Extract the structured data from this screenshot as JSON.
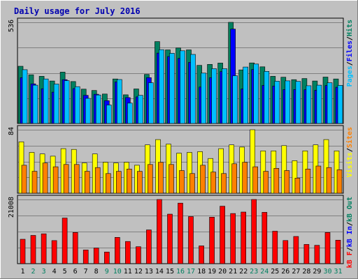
{
  "title": "Daily usage for July 2016",
  "colors": {
    "background": "#c0c0c0",
    "title": "#0000b0",
    "pages": "#00c0ff",
    "files": "#0000ff",
    "hits": "#008060",
    "visits": "#ffff00",
    "sites": "#ff8000",
    "kb_in": "#0000ff",
    "kb_out": "#008060",
    "kb_f": "#ff0000",
    "weekday_label": "#000000",
    "weekend_label": "#008060"
  },
  "chart_data": [
    {
      "type": "bar",
      "title": "Daily usage for July 2016",
      "categories": [
        "1",
        "2",
        "3",
        "4",
        "5",
        "6",
        "7",
        "8",
        "9",
        "10",
        "11",
        "12",
        "13",
        "14",
        "15",
        "16",
        "17",
        "18",
        "19",
        "20",
        "21",
        "22",
        "23",
        "24",
        "25",
        "26",
        "27",
        "28",
        "29",
        "30",
        "31"
      ],
      "weekend_days": [
        "2",
        "3",
        "9",
        "10",
        "16",
        "17",
        "23",
        "24",
        "30",
        "31"
      ],
      "y_max_label": "536",
      "ylim": [
        0,
        536
      ],
      "right_labels": [
        "Pages",
        "/",
        "Files",
        "/",
        "Hits"
      ],
      "series": [
        {
          "name": "Hits",
          "values": [
            303,
            258,
            250,
            225,
            272,
            222,
            182,
            175,
            156,
            236,
            152,
            183,
            260,
            434,
            390,
            400,
            390,
            308,
            313,
            320,
            536,
            284,
            321,
            300,
            250,
            245,
            232,
            238,
            225,
            246,
            236
          ]
        },
        {
          "name": "Files",
          "values": [
            243,
            210,
            184,
            166,
            232,
            185,
            149,
            155,
            121,
            220,
            137,
            141,
            243,
            373,
            355,
            345,
            324,
            193,
            243,
            275,
            500,
            183,
            286,
            202,
            198,
            180,
            180,
            179,
            176,
            201,
            192
          ]
        },
        {
          "name": "Pages",
          "values": [
            285,
            203,
            236,
            209,
            227,
            195,
            133,
            151,
            98,
            233,
            108,
            149,
            216,
            391,
            372,
            385,
            366,
            267,
            290,
            290,
            253,
            299,
            315,
            276,
            224,
            226,
            223,
            200,
            203,
            216,
            202
          ]
        }
      ]
    },
    {
      "type": "bar",
      "categories": [
        "1",
        "2",
        "3",
        "4",
        "5",
        "6",
        "7",
        "8",
        "9",
        "10",
        "11",
        "12",
        "13",
        "14",
        "15",
        "16",
        "17",
        "18",
        "19",
        "20",
        "21",
        "22",
        "23",
        "24",
        "25",
        "26",
        "27",
        "28",
        "29",
        "30",
        "31"
      ],
      "y_max_label": "84",
      "ylim": [
        0,
        84
      ],
      "right_labels": [
        "Visits",
        "/",
        "Sites"
      ],
      "series": [
        {
          "name": "Visits",
          "values": [
            68,
            54,
            52,
            49,
            59,
            58,
            40,
            52,
            41,
            40,
            41,
            37,
            64,
            71,
            65,
            53,
            54,
            55,
            46,
            59,
            64,
            61,
            84,
            56,
            56,
            63,
            43,
            56,
            64,
            71,
            56
          ]
        },
        {
          "name": "Sites",
          "values": [
            37,
            29,
            40,
            35,
            38,
            38,
            29,
            34,
            26,
            29,
            32,
            29,
            38,
            41,
            38,
            30,
            26,
            37,
            28,
            26,
            39,
            41,
            35,
            29,
            33,
            30,
            20,
            32,
            36,
            34,
            31
          ]
        }
      ]
    },
    {
      "type": "bar",
      "categories": [
        "1",
        "2",
        "3",
        "4",
        "5",
        "6",
        "7",
        "8",
        "9",
        "10",
        "11",
        "12",
        "13",
        "14",
        "15",
        "16",
        "17",
        "18",
        "19",
        "20",
        "21",
        "22",
        "23",
        "24",
        "25",
        "26",
        "27",
        "28",
        "29",
        "30",
        "31"
      ],
      "y_max_label": "21008",
      "ylim": [
        0,
        21008
      ],
      "right_labels": [
        "kB F",
        "/",
        "kB In",
        "/",
        "kB Out"
      ],
      "series": [
        {
          "name": "kB F",
          "values": [
            8002,
            9240,
            9770,
            7562,
            14940,
            10204,
            4502,
            5104,
            3806,
            8605,
            7253,
            5542,
            11054,
            21008,
            16210,
            19812,
            15418,
            5813,
            15234,
            18807,
            16421,
            16904,
            21008,
            16802,
            10624,
            7580,
            8903,
            6312,
            6013,
            10204,
            7702
          ]
        }
      ]
    }
  ]
}
